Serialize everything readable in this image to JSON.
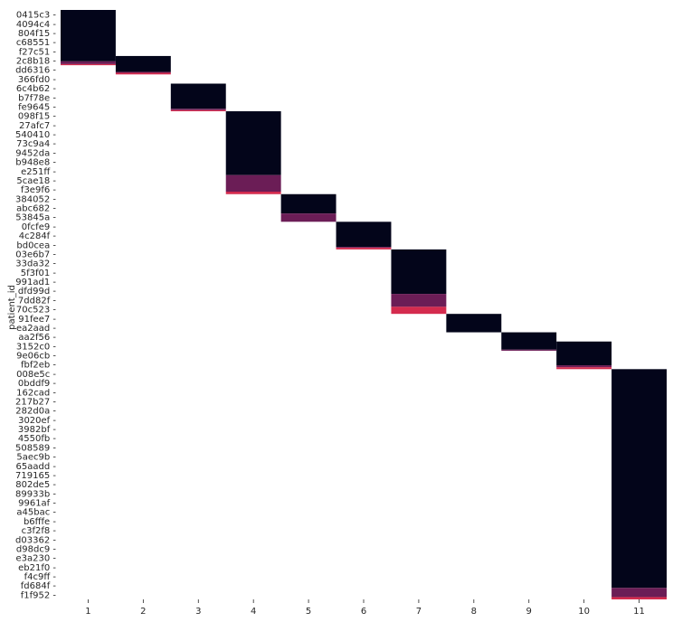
{
  "chart_data": {
    "type": "heatmap",
    "title": "",
    "xlabel": "",
    "ylabel": "patient_id",
    "x_categories": [
      "1",
      "2",
      "3",
      "4",
      "5",
      "6",
      "7",
      "8",
      "9",
      "10",
      "11"
    ],
    "y_categories": [
      "0415c3",
      "4094c4",
      "804f15",
      "c68551",
      "f27c51",
      "2c8b18",
      "dd6316",
      "366fd0",
      "6c4b62",
      "b7f78e",
      "fe9645",
      "098f15",
      "27afc7",
      "540410",
      "73c9a4",
      "9452da",
      "b948e8",
      "e251ff",
      "5cae18",
      "f3e9f6",
      "384052",
      "abc682",
      "53845a",
      "0fcfe9",
      "4c284f",
      "bd0cea",
      "03e6b7",
      "33da32",
      "5f3f01",
      "991ad1",
      "dfd99d",
      "7dd82f",
      "70c523",
      "91fee7",
      "ea2aad",
      "aa2f56",
      "3152c0",
      "9e06cb",
      "fbf2eb",
      "008e5c",
      "0bddf9",
      "162cad",
      "217b27",
      "282d0a",
      "3020ef",
      "3982bf",
      "4550fb",
      "508589",
      "5aec9b",
      "65aadd",
      "719165",
      "802de5",
      "89933b",
      "9961af",
      "a45bac",
      "b6fffe",
      "c3f2f8",
      "d03362",
      "d98dc9",
      "e3a230",
      "eb21f0",
      "f4c9ff",
      "fd684f",
      "f1f952"
    ],
    "blocks": [
      {
        "x": "1",
        "rows": [
          "0415c3",
          "4094c4",
          "804f15",
          "c68551",
          "f27c51",
          "2c8b18"
        ],
        "dark_fraction": 0.93,
        "mid_fraction": 0.05
      },
      {
        "x": "2",
        "rows": [
          "2c8b18",
          "dd6316"
        ],
        "dark_fraction": 0.86,
        "mid_fraction": 0.05
      },
      {
        "x": "3",
        "rows": [
          "6c4b62",
          "b7f78e",
          "fe9645"
        ],
        "dark_fraction": 0.91,
        "mid_fraction": 0.05
      },
      {
        "x": "4",
        "rows": [
          "098f15",
          "27afc7",
          "540410",
          "73c9a4",
          "9452da",
          "b948e8",
          "e251ff",
          "5cae18",
          "f3e9f6"
        ],
        "dark_fraction": 0.77,
        "mid_fraction": 0.2
      },
      {
        "x": "5",
        "rows": [
          "384052",
          "abc682",
          "53845a"
        ],
        "dark_fraction": 0.7,
        "mid_fraction": 0.3
      },
      {
        "x": "6",
        "rows": [
          "0fcfe9",
          "4c284f",
          "bd0cea"
        ],
        "dark_fraction": 0.91,
        "mid_fraction": 0.03
      },
      {
        "x": "7",
        "rows": [
          "03e6b7",
          "33da32",
          "5f3f01",
          "991ad1",
          "dfd99d",
          "7dd82f",
          "70c523"
        ],
        "dark_fraction": 0.69,
        "mid_fraction": 0.2
      },
      {
        "x": "8",
        "rows": [
          "91fee7",
          "ea2aad"
        ],
        "dark_fraction": 1.0,
        "mid_fraction": 0.0
      },
      {
        "x": "9",
        "rows": [
          "aa2f56",
          "3152c0"
        ],
        "dark_fraction": 0.94,
        "mid_fraction": 0.06
      },
      {
        "x": "10",
        "rows": [
          "3152c0",
          "9e06cb",
          "fbf2eb"
        ],
        "dark_fraction": 0.86,
        "mid_fraction": 0.07
      },
      {
        "x": "11",
        "rows": [
          "008e5c",
          "0bddf9",
          "162cad",
          "217b27",
          "282d0a",
          "3020ef",
          "3982bf",
          "4550fb",
          "508589",
          "5aec9b",
          "65aadd",
          "719165",
          "802de5",
          "89933b",
          "9961af",
          "a45bac",
          "b6fffe",
          "c3f2f8",
          "d03362",
          "d98dc9",
          "e3a230",
          "eb21f0",
          "f4c9ff",
          "fd684f",
          "f1f952"
        ],
        "dark_fraction": 0.95,
        "mid_fraction": 0.04
      }
    ],
    "colors": {
      "dark": "#03051a",
      "mid": "#6b1d56",
      "high": "#d42b4e"
    },
    "grid": false,
    "colorbar": false
  }
}
